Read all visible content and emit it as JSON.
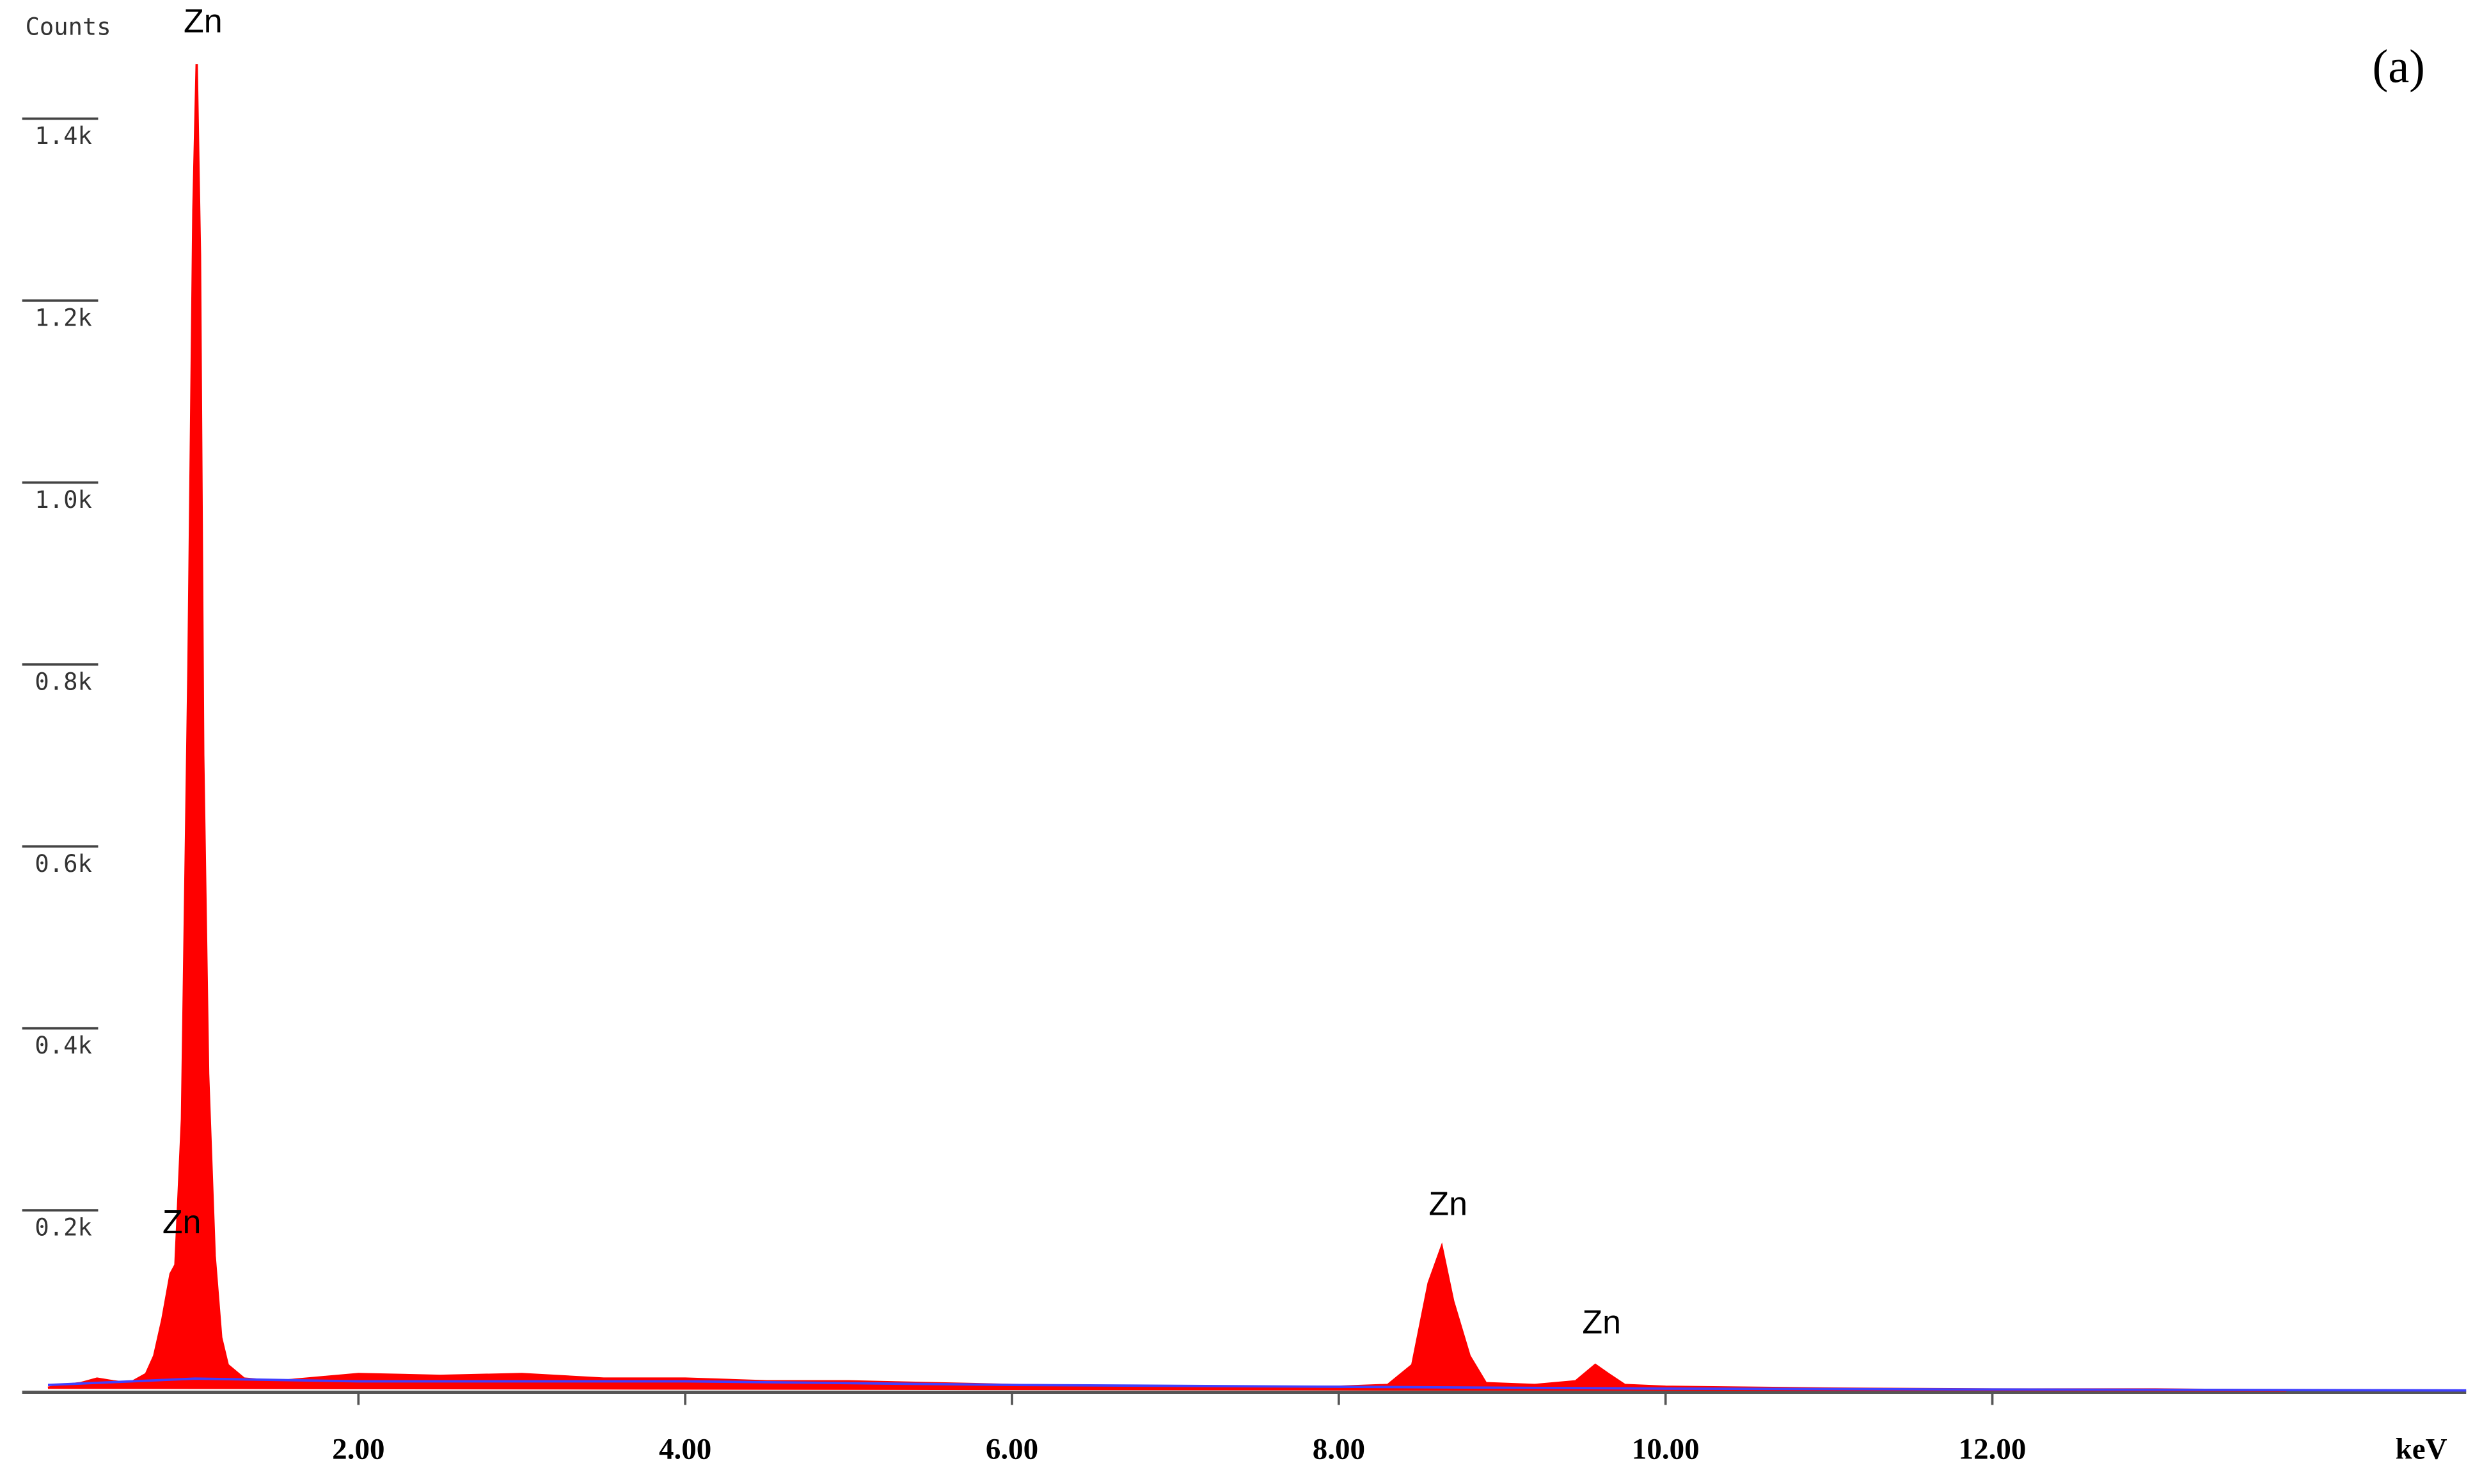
{
  "chart_data": {
    "type": "area",
    "y_label": "Counts",
    "x_label": "keV",
    "panel_label": "(a)",
    "xlim": [
      0,
      14.9
    ],
    "ylim": [
      0,
      1500
    ],
    "xticks": [
      {
        "value": 2,
        "label": "2.00"
      },
      {
        "value": 4,
        "label": "4.00"
      },
      {
        "value": 6,
        "label": "6.00"
      },
      {
        "value": 8,
        "label": "8.00"
      },
      {
        "value": 10,
        "label": "10.00"
      },
      {
        "value": 12,
        "label": "12.00"
      }
    ],
    "yticks": [
      {
        "value": 200,
        "label": "0.2k"
      },
      {
        "value": 400,
        "label": "0.4k"
      },
      {
        "value": 600,
        "label": "0.6k"
      },
      {
        "value": 800,
        "label": "0.8k"
      },
      {
        "value": 1000,
        "label": "1.0k"
      },
      {
        "value": 1200,
        "label": "1.2k"
      },
      {
        "value": 1400,
        "label": "1.4k"
      }
    ],
    "series": [
      {
        "color": "#ff0000",
        "fill": true,
        "x": [
          0.1,
          0.2,
          0.3,
          0.4,
          0.5,
          0.6,
          0.7,
          0.75,
          0.8,
          0.85,
          0.88,
          0.92,
          0.96,
          0.99,
          1.01,
          1.03,
          1.05,
          1.08,
          1.12,
          1.16,
          1.2,
          1.3,
          1.5,
          2.0,
          2.5,
          3.0,
          3.5,
          4.0,
          4.5,
          5.0,
          5.5,
          6.0,
          6.5,
          7.0,
          7.5,
          8.0,
          8.3,
          8.45,
          8.55,
          8.63,
          8.7,
          8.8,
          8.9,
          9.2,
          9.45,
          9.57,
          9.65,
          9.75,
          10.0,
          11.0,
          12.0,
          13.0,
          13.8
        ],
        "values": [
          5,
          8,
          10,
          15,
          12,
          10,
          20,
          40,
          80,
          130,
          140,
          300,
          800,
          1300,
          1460,
          1250,
          700,
          350,
          150,
          60,
          30,
          15,
          12,
          20,
          18,
          20,
          15,
          15,
          12,
          12,
          10,
          8,
          7,
          6,
          6,
          6,
          8,
          30,
          120,
          160,
          100,
          40,
          10,
          8,
          12,
          30,
          20,
          8,
          6,
          4,
          3,
          3,
          2
        ]
      },
      {
        "color": "#4040ff",
        "fill": false,
        "x": [
          0.1,
          1,
          2,
          4,
          6,
          8,
          10,
          12,
          14.9
        ],
        "values": [
          8,
          15,
          12,
          12,
          8,
          6,
          4,
          3,
          2
        ]
      }
    ],
    "annotations": [
      {
        "text": "Zn",
        "x": 1.01,
        "y": 1460
      },
      {
        "text": "Zn",
        "x": 0.88,
        "y": 140
      },
      {
        "text": "Zn",
        "x": 8.63,
        "y": 160
      },
      {
        "text": "Zn",
        "x": 9.57,
        "y": 30
      }
    ]
  }
}
